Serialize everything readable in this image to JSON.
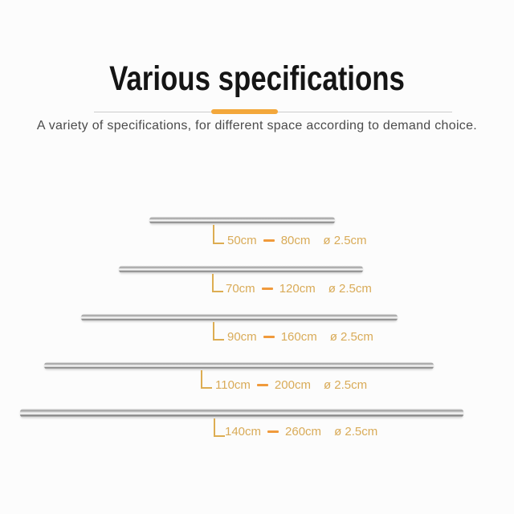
{
  "header": {
    "title": "Various specifications",
    "subtitle": "A variety of specifications, for different space according to demand choice."
  },
  "colors": {
    "accent": "#F3A73B",
    "label_text": "#D9AB58",
    "range_dash": "#F09A3C",
    "title_text": "#151515",
    "subtitle_text": "#4B4B4B"
  },
  "rods": [
    {
      "min": "50cm",
      "max": "80cm",
      "diameter": "ø 2.5cm"
    },
    {
      "min": "70cm",
      "max": "120cm",
      "diameter": "ø 2.5cm"
    },
    {
      "min": "90cm",
      "max": "160cm",
      "diameter": "ø 2.5cm"
    },
    {
      "min": "110cm",
      "max": "200cm",
      "diameter": "ø 2.5cm"
    },
    {
      "min": "140cm",
      "max": "260cm",
      "diameter": "ø 2.5cm"
    }
  ]
}
